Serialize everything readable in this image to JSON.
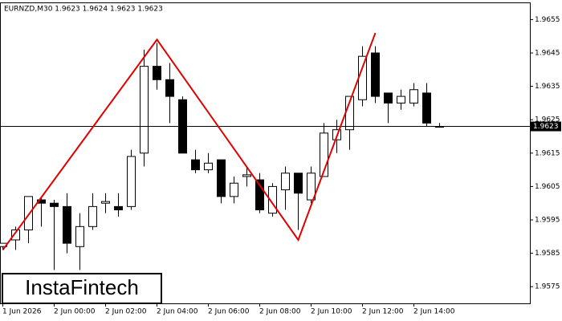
{
  "chart_data": {
    "type": "candlestick",
    "title": "EURNZD,M30  1.9623 1.9624 1.9623 1.9623",
    "categories": [
      "1 Jun 2026",
      null,
      null,
      null,
      "2 Jun 00:00",
      null,
      null,
      null,
      "2 Jun 02:00",
      null,
      null,
      null,
      "2 Jun 04:00",
      null,
      null,
      null,
      "2 Jun 06:00",
      null,
      null,
      null,
      "2 Jun 08:00",
      null,
      null,
      null,
      "2 Jun 10:00",
      null,
      null,
      null,
      "2 Jun 12:00",
      null,
      null,
      null,
      "2 Jun 14:00",
      null,
      null
    ],
    "open": [
      1.9587,
      1.9589,
      1.9592,
      1.9601,
      1.96,
      1.9599,
      1.9587,
      1.9593,
      1.96,
      1.9599,
      1.9599,
      1.9615,
      1.9641,
      1.9637,
      1.9631,
      1.9613,
      1.961,
      1.9613,
      1.9602,
      1.9608,
      1.9607,
      1.9597,
      1.9604,
      1.9609,
      1.9601,
      1.9608,
      1.9619,
      1.9622,
      1.9631,
      1.9645,
      1.9633,
      1.963,
      1.963,
      1.9633,
      1.9623
    ],
    "high": [
      1.9588,
      1.9593,
      1.9602,
      1.9602,
      1.9601,
      1.9603,
      1.9597,
      1.9603,
      1.9603,
      1.9603,
      1.9616,
      1.9646,
      1.9648,
      1.9642,
      1.9632,
      1.9616,
      1.9615,
      1.9613,
      1.9608,
      1.9611,
      1.9609,
      1.9606,
      1.9611,
      1.9609,
      1.9611,
      1.9624,
      1.9625,
      1.9632,
      1.9647,
      1.9647,
      1.9633,
      1.9634,
      1.9636,
      1.9636,
      1.9624
    ],
    "low": [
      1.9586,
      1.9586,
      1.9588,
      1.9593,
      1.958,
      1.9585,
      1.958,
      1.9592,
      1.9597,
      1.9596,
      1.9598,
      1.9611,
      1.9634,
      1.9624,
      1.9615,
      1.9609,
      1.9609,
      1.96,
      1.96,
      1.9605,
      1.9597,
      1.9596,
      1.9598,
      1.9592,
      1.96,
      1.9608,
      1.9615,
      1.9616,
      1.9629,
      1.963,
      1.9624,
      1.9628,
      1.9629,
      1.9623,
      1.9623
    ],
    "close": [
      1.9588,
      1.9592,
      1.9602,
      1.96,
      1.9599,
      1.9588,
      1.9593,
      1.9599,
      1.96005,
      1.9598,
      1.9614,
      1.9641,
      1.9637,
      1.9632,
      1.9615,
      1.961,
      1.9612,
      1.9602,
      1.9606,
      1.96085,
      1.9598,
      1.9605,
      1.9609,
      1.9603,
      1.9609,
      1.9621,
      1.9622,
      1.9632,
      1.9644,
      1.9632,
      1.963,
      1.9632,
      1.9634,
      1.9624,
      1.9623
    ],
    "up_color": "#ffffff",
    "down_color": "#000000",
    "ylim": [
      1.957,
      1.966
    ],
    "yticks": [
      1.9575,
      1.9585,
      1.9595,
      1.9605,
      1.9615,
      1.9625,
      1.9635,
      1.9645,
      1.9655
    ],
    "current_price": 1.9623,
    "pattern": {
      "color": "#e00000",
      "points": [
        0,
        12,
        23,
        29
      ],
      "values": [
        1.9586,
        1.9649,
        1.9589,
        1.9651
      ]
    }
  },
  "logo": "InstaFintech"
}
